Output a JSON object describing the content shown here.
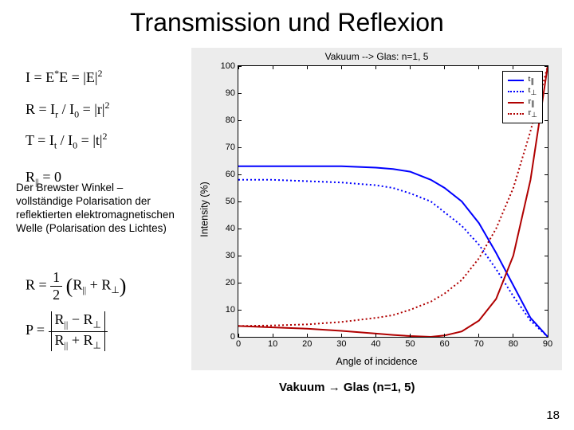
{
  "title": "Transmission und Reflexion",
  "page_number": "18",
  "note": "Der Brewster Winkel – vollständige Polarisation der reflektierten elektromagnetischen Welle (Polarisation des Lichtes)",
  "caption": "Vakuum → Glas (n=1, 5)",
  "formulas": {
    "I": "I = E*E = |E|²",
    "R": "R = I_r / I_0 = |r|²",
    "T": "T = I_t / I_0 = |t|²",
    "R0": "R_|| = 0"
  },
  "chart": {
    "type": "line",
    "title": "Vakuum --> Glas: n=1, 5",
    "xlabel": "Angle of incidence",
    "ylabel": "Intensity (%)",
    "xlim": [
      0,
      90
    ],
    "ylim": [
      0,
      100
    ],
    "xtick_step": 10,
    "ytick_step": 10,
    "background_color": "#ececec",
    "plot_bg": "#ffffff",
    "axis_color": "#000000",
    "series": [
      {
        "name": "t_par",
        "label": "t∥",
        "color": "#0000ff",
        "dash": "solid",
        "width": 2,
        "x": [
          0,
          10,
          20,
          30,
          40,
          45,
          50,
          56,
          60,
          65,
          70,
          75,
          80,
          85,
          90
        ],
        "y": [
          63,
          63,
          63,
          63,
          62.5,
          62,
          61,
          58,
          55,
          50,
          42,
          31,
          19,
          7,
          0
        ]
      },
      {
        "name": "t_perp",
        "label": "t⊥",
        "color": "#0000ff",
        "dash": "dotted",
        "width": 2,
        "x": [
          0,
          10,
          20,
          30,
          40,
          45,
          50,
          56,
          60,
          65,
          70,
          75,
          80,
          85,
          90
        ],
        "y": [
          58,
          58,
          57.5,
          57,
          56,
          55,
          53,
          50,
          46,
          41,
          34,
          25,
          15,
          6,
          0
        ]
      },
      {
        "name": "r_par",
        "label": "r∥",
        "color": "#b00000",
        "dash": "solid",
        "width": 2,
        "x": [
          0,
          10,
          20,
          30,
          40,
          45,
          50,
          56,
          60,
          65,
          70,
          75,
          80,
          85,
          90
        ],
        "y": [
          4,
          3.5,
          3,
          2.2,
          1.2,
          0.7,
          0.3,
          0,
          0.5,
          2,
          6,
          14,
          30,
          58,
          100
        ]
      },
      {
        "name": "r_perp",
        "label": "r⊥",
        "color": "#b00000",
        "dash": "dotted",
        "width": 2,
        "x": [
          0,
          10,
          20,
          30,
          40,
          45,
          50,
          56,
          60,
          65,
          70,
          75,
          80,
          85,
          90
        ],
        "y": [
          4,
          4.2,
          4.6,
          5.5,
          7,
          8,
          10,
          13,
          16,
          21,
          29,
          40,
          55,
          76,
          100
        ]
      }
    ],
    "legend": [
      {
        "label": "t",
        "sub": "∥",
        "color": "#0000ff",
        "dash": "solid"
      },
      {
        "label": "t",
        "sub": "⊥",
        "color": "#0000ff",
        "dash": "dotted"
      },
      {
        "label": "r",
        "sub": "∥",
        "color": "#b00000",
        "dash": "solid"
      },
      {
        "label": "r",
        "sub": "⊥",
        "color": "#b00000",
        "dash": "dotted"
      }
    ]
  }
}
